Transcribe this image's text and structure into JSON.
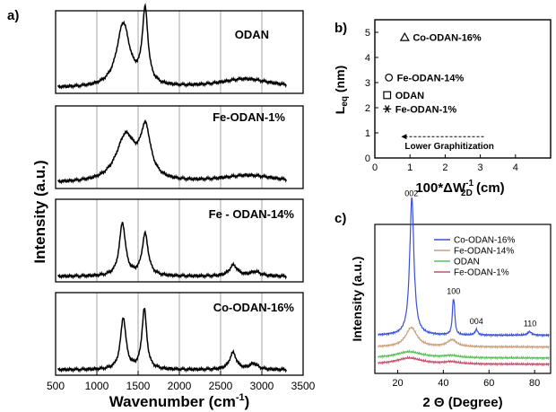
{
  "colors": {
    "trace": "#000000",
    "frame": "#000000",
    "vgrid": "#9a9a9a",
    "co_odan_16": "#3b4fd6",
    "fe_odan_14": "#c8a07a",
    "odan": "#5cbf5c",
    "fe_odan_1": "#c4506e"
  },
  "chart_data": [
    {
      "panel": "a)",
      "type": "line",
      "xlabel": "Wavenumber (cm-1)",
      "xlabel_main": "Wavenumber (cm",
      "xlabel_sup": "-1",
      "xlabel_end": ")",
      "ylabel": "Intensity (a.u.)",
      "xlim": [
        500,
        3500
      ],
      "xticks": [
        500,
        1000,
        1500,
        2000,
        2500,
        3000,
        3500
      ],
      "gridlines_x": [
        1000,
        1500,
        2000,
        2500,
        3000
      ],
      "stacked": true,
      "series": [
        {
          "name": "ODAN",
          "peaks": [
            {
              "center": 1320,
              "height": 0.86,
              "width": 95
            },
            {
              "center": 1585,
              "height": 1.0,
              "width": 42
            },
            {
              "center": 2800,
              "height": 0.12,
              "width": 380
            }
          ]
        },
        {
          "name": "Fe-ODAN-1%",
          "peaks": [
            {
              "center": 1350,
              "height": 0.62,
              "width": 140
            },
            {
              "center": 1590,
              "height": 0.66,
              "width": 75
            },
            {
              "center": 2840,
              "height": 0.1,
              "width": 420
            }
          ]
        },
        {
          "name": "Fe - ODAN-14%",
          "peaks": [
            {
              "center": 1310,
              "height": 0.72,
              "width": 45
            },
            {
              "center": 1585,
              "height": 0.57,
              "width": 45
            },
            {
              "center": 2655,
              "height": 0.15,
              "width": 60
            },
            {
              "center": 2920,
              "height": 0.06,
              "width": 80
            }
          ]
        },
        {
          "name": "Co-ODAN-16%",
          "peaks": [
            {
              "center": 1320,
              "height": 0.7,
              "width": 40
            },
            {
              "center": 1575,
              "height": 0.82,
              "width": 35
            },
            {
              "center": 2650,
              "height": 0.23,
              "width": 50
            },
            {
              "center": 2900,
              "height": 0.08,
              "width": 60
            }
          ]
        }
      ]
    },
    {
      "panel": "b)",
      "type": "scatter",
      "xlabel": "100*ΔW2D-1 (cm)",
      "xlabel_main": "100*ΔW",
      "xlabel_sub": "2D",
      "xlabel_sup": "-1",
      "xlabel_end": " (cm)",
      "ylabel": "Leq (nm)",
      "ylabel_main": "L",
      "ylabel_sub": "eq",
      "ylabel_end": " (nm)",
      "xlim": [
        0,
        5
      ],
      "ylim": [
        0,
        5.5
      ],
      "xticks": [
        0,
        1,
        2,
        3,
        4
      ],
      "yticks": [
        0,
        1,
        2,
        3,
        4,
        5
      ],
      "points": [
        {
          "name": "Co-ODAN-16%",
          "x": 0.85,
          "y": 4.8,
          "marker": "triangle"
        },
        {
          "name": "Fe-ODAN-14%",
          "x": 0.4,
          "y": 3.2,
          "marker": "circle"
        },
        {
          "name": "ODAN",
          "x": 0.35,
          "y": 2.5,
          "marker": "square"
        },
        {
          "name": "Fe-ODAN-1%",
          "x": 0.35,
          "y": 1.95,
          "marker": "asterisk"
        }
      ],
      "annotation": {
        "text": "Lower Graphitization",
        "arrow_from_x": 3.1,
        "arrow_to_x": 0.75,
        "y": 0.85
      }
    },
    {
      "panel": "c)",
      "type": "line",
      "xlabel": "2 Θ (Degree)",
      "ylabel": "Intensity (a.u.)",
      "xlim": [
        10,
        87
      ],
      "xticks": [
        20,
        40,
        60,
        80
      ],
      "peak_labels": [
        {
          "text": "002",
          "x": 26
        },
        {
          "text": "100",
          "x": 44.5
        },
        {
          "text": "004",
          "x": 54.5
        },
        {
          "text": "110",
          "x": 78
        }
      ],
      "series": [
        {
          "name": "Co-ODAN-16%",
          "color": "#3b4fd6",
          "offset": 0.25,
          "peaks": [
            {
              "center": 26.2,
              "height": 1.0,
              "width": 1.1
            },
            {
              "center": 44.3,
              "height": 0.2,
              "width": 0.5
            },
            {
              "center": 44.8,
              "height": 0.13,
              "width": 0.4
            },
            {
              "center": 54.5,
              "height": 0.04,
              "width": 0.7
            },
            {
              "center": 77.8,
              "height": 0.025,
              "width": 1.0
            }
          ]
        },
        {
          "name": "Fe-ODAN-14%",
          "color": "#c8a07a",
          "offset": 0.165,
          "peaks": [
            {
              "center": 26.0,
              "height": 0.14,
              "width": 3.0
            },
            {
              "center": 43.8,
              "height": 0.05,
              "width": 2.5
            }
          ]
        },
        {
          "name": "ODAN",
          "color": "#5cbf5c",
          "offset": 0.085,
          "peaks": [
            {
              "center": 25.0,
              "height": 0.045,
              "width": 7.0
            },
            {
              "center": 43.5,
              "height": 0.015,
              "width": 4.0
            }
          ]
        },
        {
          "name": "Fe-ODAN-1%",
          "color": "#c4506e",
          "offset": 0.04,
          "peaks": [
            {
              "center": 25.0,
              "height": 0.045,
              "width": 7.0
            },
            {
              "center": 43.5,
              "height": 0.015,
              "width": 4.0
            }
          ]
        }
      ]
    }
  ]
}
